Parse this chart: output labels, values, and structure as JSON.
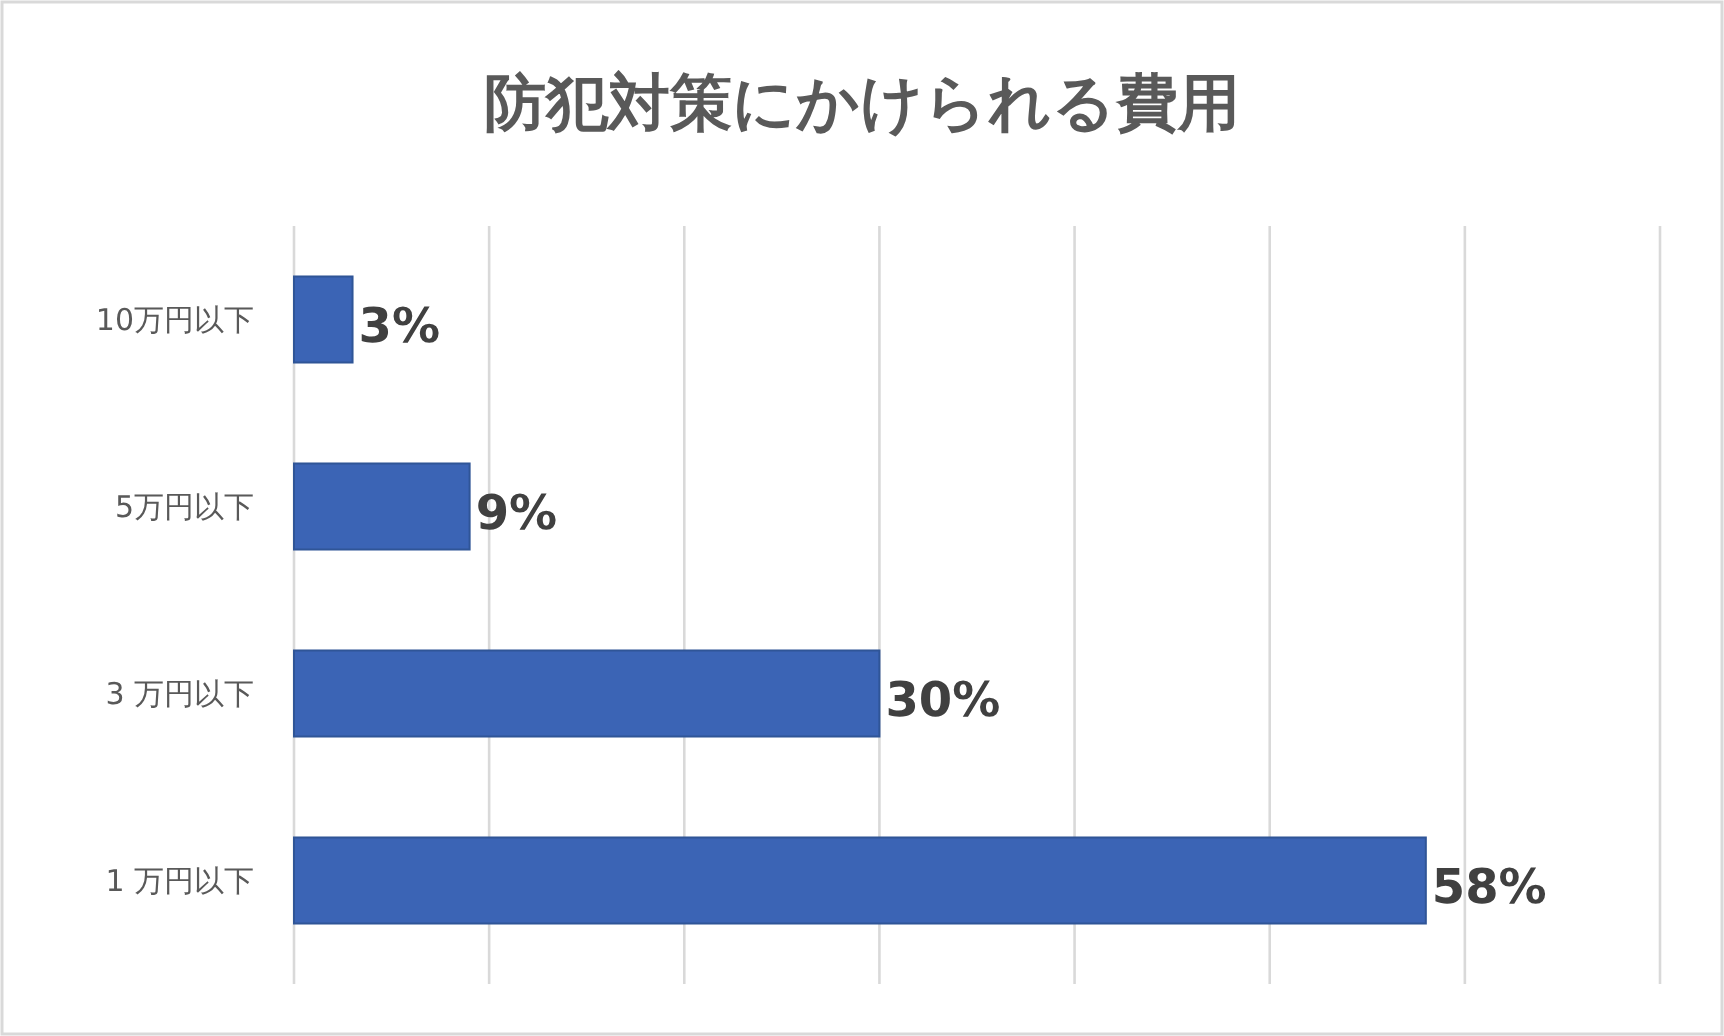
{
  "chart_data": {
    "type": "bar",
    "orientation": "horizontal",
    "title": "防犯対策にかけられる費用",
    "categories": [
      "10万円以下",
      "5万円以下",
      "3 万円以下",
      "1 万円以下"
    ],
    "values": [
      3,
      9,
      30,
      58
    ],
    "value_labels": [
      "3%",
      "9%",
      "30%",
      "58%"
    ],
    "color": "#3b64b5",
    "xlim": [
      0,
      70
    ],
    "xticks": [
      {
        "value": 0,
        "label": null
      },
      {
        "value": 10,
        "label": null
      },
      {
        "value": 20,
        "label": null
      },
      {
        "value": 30,
        "label": null
      },
      {
        "value": 40,
        "label": null
      },
      {
        "value": 50,
        "label": null
      },
      {
        "value": 60,
        "label": null
      },
      {
        "value": 70,
        "label": null
      }
    ],
    "tick_labels": "y",
    "grid": "x"
  }
}
